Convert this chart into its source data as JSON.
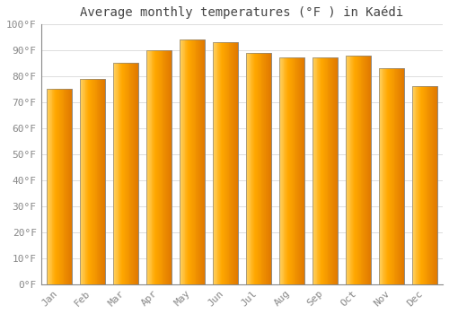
{
  "title": "Average monthly temperatures (°F ) in Kaédi",
  "months": [
    "Jan",
    "Feb",
    "Mar",
    "Apr",
    "May",
    "Jun",
    "Jul",
    "Aug",
    "Sep",
    "Oct",
    "Nov",
    "Dec"
  ],
  "values": [
    75,
    79,
    85,
    90,
    94,
    93,
    89,
    87,
    87,
    88,
    83,
    76
  ],
  "bar_color_left": "#FFD060",
  "bar_color_center": "#FFA800",
  "bar_color_right": "#E07800",
  "background_color": "#FFFFFF",
  "grid_color": "#DDDDDD",
  "ytick_labels": [
    "0°F",
    "10°F",
    "20°F",
    "30°F",
    "40°F",
    "50°F",
    "60°F",
    "70°F",
    "80°F",
    "90°F",
    "100°F"
  ],
  "ytick_values": [
    0,
    10,
    20,
    30,
    40,
    50,
    60,
    70,
    80,
    90,
    100
  ],
  "ylim": [
    0,
    100
  ],
  "title_fontsize": 10,
  "tick_fontsize": 8,
  "tick_color": "#888888",
  "title_color": "#444444",
  "bar_width": 0.75,
  "bar_edge_color": "#888888",
  "bar_edge_width": 0.5
}
